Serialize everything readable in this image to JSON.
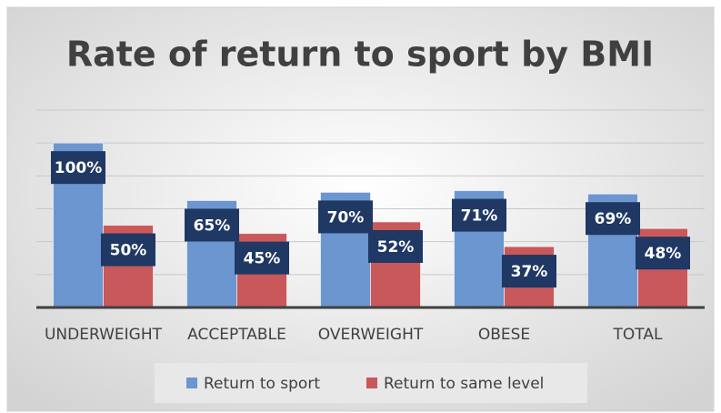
{
  "chart_data": {
    "type": "bar",
    "title": "Rate of return to sport by BMI",
    "categories": [
      "UNDERWEIGHT",
      "ACCEPTABLE",
      "OVERWEIGHT",
      "OBESE",
      "TOTAL"
    ],
    "series": [
      {
        "name": "Return to sport",
        "color": "#6b96cf",
        "values": [
          100,
          65,
          70,
          71,
          69
        ],
        "value_labels": [
          "100%",
          "65%",
          "70%",
          "71%",
          "69%"
        ]
      },
      {
        "name": "Return to same level",
        "color": "#c9585b",
        "values": [
          50,
          45,
          52,
          37,
          48
        ],
        "value_labels": [
          "50%",
          "45%",
          "52%",
          "37%",
          "48%"
        ]
      }
    ],
    "ylim": [
      0,
      120
    ],
    "yticks": [
      0,
      20,
      40,
      60,
      80,
      100,
      120
    ],
    "grid": true,
    "legend": "bottom"
  }
}
